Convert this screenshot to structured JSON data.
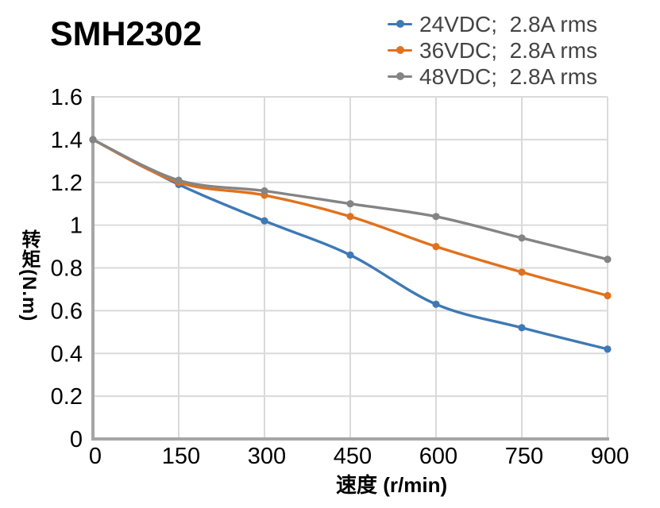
{
  "title": "SMH2302",
  "chart_data": {
    "type": "line",
    "title": "SMH2302",
    "x": [
      0,
      150,
      300,
      450,
      600,
      750,
      900
    ],
    "series": [
      {
        "name": "24VDC;  2.8A rms",
        "color": "#3E79B5",
        "values": [
          1.4,
          1.19,
          1.02,
          0.86,
          0.63,
          0.52,
          0.42
        ]
      },
      {
        "name": "36VDC;  2.8A rms",
        "color": "#E2711D",
        "values": [
          1.4,
          1.2,
          1.14,
          1.04,
          0.9,
          0.78,
          0.67
        ]
      },
      {
        "name": "48VDC;  2.8A rms",
        "color": "#848484",
        "values": [
          1.4,
          1.21,
          1.16,
          1.1,
          1.04,
          0.94,
          0.84
        ]
      }
    ],
    "xlabel": "速度 (r/min)",
    "ylabel": "转矩(N.m)",
    "xlim": [
      0,
      900
    ],
    "ylim": [
      0,
      1.6
    ],
    "x_ticks": [
      "0",
      "150",
      "300",
      "450",
      "600",
      "750",
      "900"
    ],
    "y_ticks": [
      "0",
      "0.2",
      "0.4",
      "0.6",
      "0.8",
      "1",
      "1.2",
      "1.4",
      "1.6"
    ],
    "grid": true,
    "smooth_lines": true,
    "legend_position": "top-right",
    "colors": {
      "grid_line": "#DADADA",
      "axis_line": "#A6A6A6",
      "tick_text": "#000000",
      "legend_text": "#444444",
      "title_text": "#000000"
    }
  }
}
